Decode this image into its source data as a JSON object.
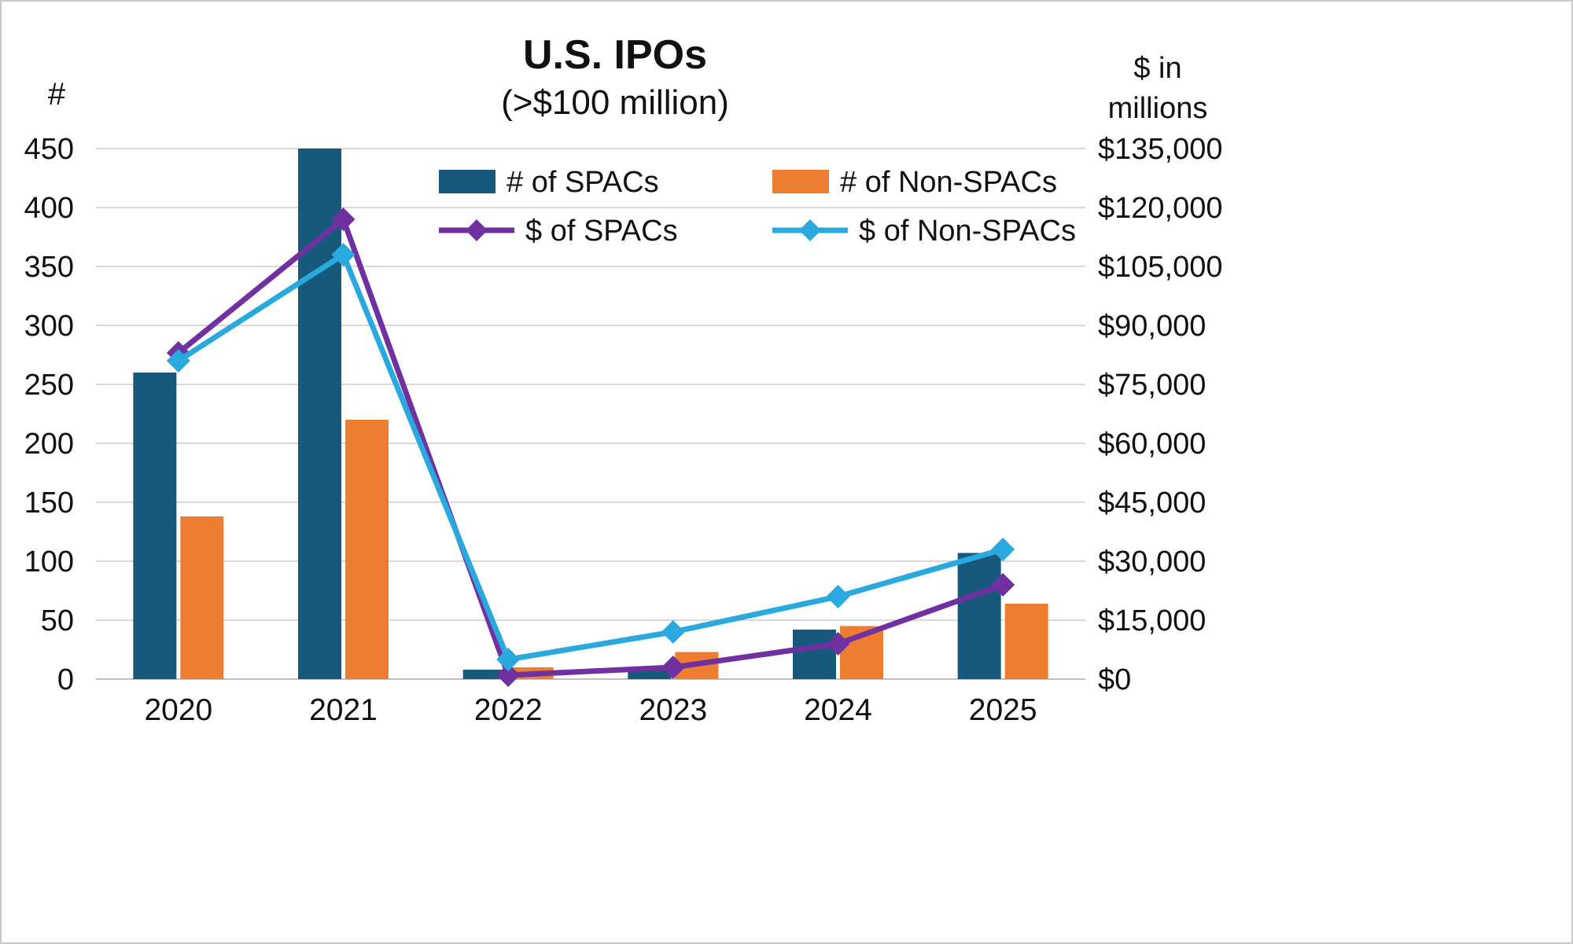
{
  "chart_data": {
    "type": "combo",
    "title": "U.S. IPOs",
    "subtitle": "(>$100 million)",
    "left_axis_label": "#",
    "right_axis_label": "$ in\nmillions",
    "categories": [
      "2020",
      "2021",
      "2022",
      "2023",
      "2024",
      "2025"
    ],
    "left_axis": {
      "min": 0,
      "max": 450,
      "step": 50,
      "tick_labels": [
        "0",
        "50",
        "100",
        "150",
        "200",
        "250",
        "300",
        "350",
        "400",
        "450"
      ]
    },
    "right_axis": {
      "min": 0,
      "max": 135000,
      "step": 15000,
      "tick_labels": [
        "$0",
        "$15,000",
        "$30,000",
        "$45,000",
        "$60,000",
        "$75,000",
        "$90,000",
        "$105,000",
        "$120,000",
        "$135,000"
      ]
    },
    "grid": true,
    "legend_position": "top-inside",
    "series": [
      {
        "name": "# of SPACs",
        "type": "bar",
        "axis": "left",
        "color": "#16597B",
        "values": [
          260,
          450,
          8,
          10,
          42,
          107
        ]
      },
      {
        "name": "# of Non-SPACs",
        "type": "bar",
        "axis": "left",
        "color": "#ED7D31",
        "values": [
          138,
          220,
          10,
          23,
          45,
          64
        ]
      },
      {
        "name": "$ of SPACs",
        "type": "line",
        "axis": "right",
        "color": "#7030A0",
        "values": [
          83000,
          117000,
          1000,
          3000,
          9000,
          24000
        ]
      },
      {
        "name": "$ of Non-SPACs",
        "type": "line",
        "axis": "right",
        "color": "#29A9DD",
        "values": [
          81000,
          108000,
          5000,
          12000,
          21000,
          33000
        ]
      }
    ],
    "colors": {
      "gridline": "#d9d9d9",
      "axis_line": "#bfbfbf",
      "text": "#111111"
    }
  }
}
